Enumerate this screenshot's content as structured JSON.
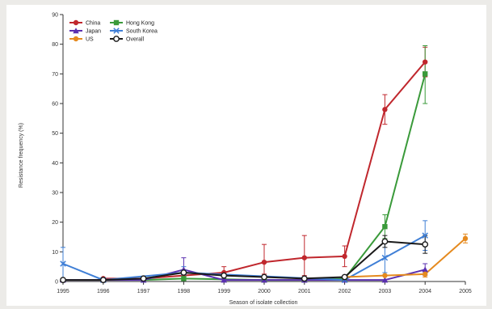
{
  "chart_data": {
    "type": "line",
    "xlabel": "Season of isolate collection",
    "ylabel": "Resistance frequency (%)",
    "x": [
      "1995",
      "1996",
      "1997",
      "1998",
      "1999",
      "2000",
      "2001",
      "2002",
      "2003",
      "2004",
      "2005"
    ],
    "xlim": [
      1995,
      2005
    ],
    "ylim": [
      0,
      90
    ],
    "yticks": [
      0,
      10,
      20,
      30,
      40,
      50,
      60,
      70,
      80,
      90
    ],
    "legend_position": "top-left",
    "grid": false,
    "series": [
      {
        "name": "China",
        "color": "#c0272d",
        "marker": "circle",
        "values": [
          null,
          1,
          1,
          2,
          3,
          6.5,
          8,
          8.5,
          58,
          74,
          null
        ],
        "err_low": [
          null,
          0.5,
          0.5,
          1,
          1.5,
          4,
          6,
          3.5,
          5,
          5,
          null
        ],
        "err_high": [
          null,
          0.5,
          0.5,
          1,
          2,
          6,
          7.5,
          3.5,
          5,
          5,
          null
        ]
      },
      {
        "name": "Hong Kong",
        "color": "#3a9a3a",
        "marker": "square",
        "values": [
          null,
          null,
          0.5,
          1,
          null,
          0.5,
          0.5,
          1,
          18.5,
          70,
          null
        ],
        "err_low": [
          null,
          null,
          0.5,
          0.5,
          null,
          0.5,
          0.5,
          0.5,
          4,
          10,
          null
        ],
        "err_high": [
          null,
          null,
          0.5,
          0.5,
          null,
          0.5,
          0.5,
          0.5,
          4,
          9.5,
          null
        ]
      },
      {
        "name": "Japan",
        "color": "#5a2fb0",
        "marker": "triangle",
        "values": [
          0.5,
          0.5,
          0.5,
          4,
          0.5,
          0.5,
          0.5,
          0.5,
          0.5,
          4,
          null
        ],
        "err_low": [
          0.5,
          0.5,
          0.5,
          2,
          0.5,
          0.5,
          0.5,
          0.5,
          0.5,
          2,
          null
        ],
        "err_high": [
          0.5,
          0.5,
          0.5,
          4,
          0.5,
          0.5,
          0.5,
          0.5,
          0.5,
          2,
          null
        ]
      },
      {
        "name": "South Korea",
        "color": "#3f7fd6",
        "marker": "x",
        "values": [
          6,
          0.5,
          null,
          3,
          null,
          null,
          null,
          0.5,
          8,
          15.5,
          null
        ],
        "err_low": [
          6,
          0.5,
          null,
          2,
          null,
          null,
          null,
          0.5,
          5,
          5,
          null
        ],
        "err_high": [
          5.5,
          0.5,
          null,
          2,
          null,
          null,
          null,
          0.5,
          5,
          5,
          null
        ]
      },
      {
        "name": "US",
        "color": "#e58a1f",
        "marker": "circle",
        "values": [
          null,
          null,
          null,
          null,
          null,
          null,
          null,
          1.5,
          2,
          2.5,
          14.5
        ],
        "err_low": [
          null,
          null,
          null,
          null,
          null,
          null,
          null,
          0.5,
          0.5,
          1,
          1.5
        ],
        "err_high": [
          null,
          null,
          null,
          null,
          null,
          null,
          null,
          0.5,
          0.5,
          1,
          1.5
        ]
      },
      {
        "name": "Overall",
        "color": "#1a1a1a",
        "marker": "open-circle",
        "values": [
          0.5,
          0.5,
          1,
          3,
          2,
          1.5,
          1,
          1.5,
          13.5,
          12.5,
          null
        ],
        "err_low": [
          0.5,
          0.5,
          0.5,
          1,
          1,
          0.5,
          0.5,
          0.5,
          2,
          3,
          null
        ],
        "err_high": [
          0.5,
          0.5,
          0.5,
          1,
          1,
          0.5,
          0.5,
          0.5,
          2,
          3,
          null
        ]
      }
    ],
    "legend_order": [
      "China",
      "Hong Kong",
      "Japan",
      "South Korea",
      "US",
      "Overall"
    ]
  }
}
